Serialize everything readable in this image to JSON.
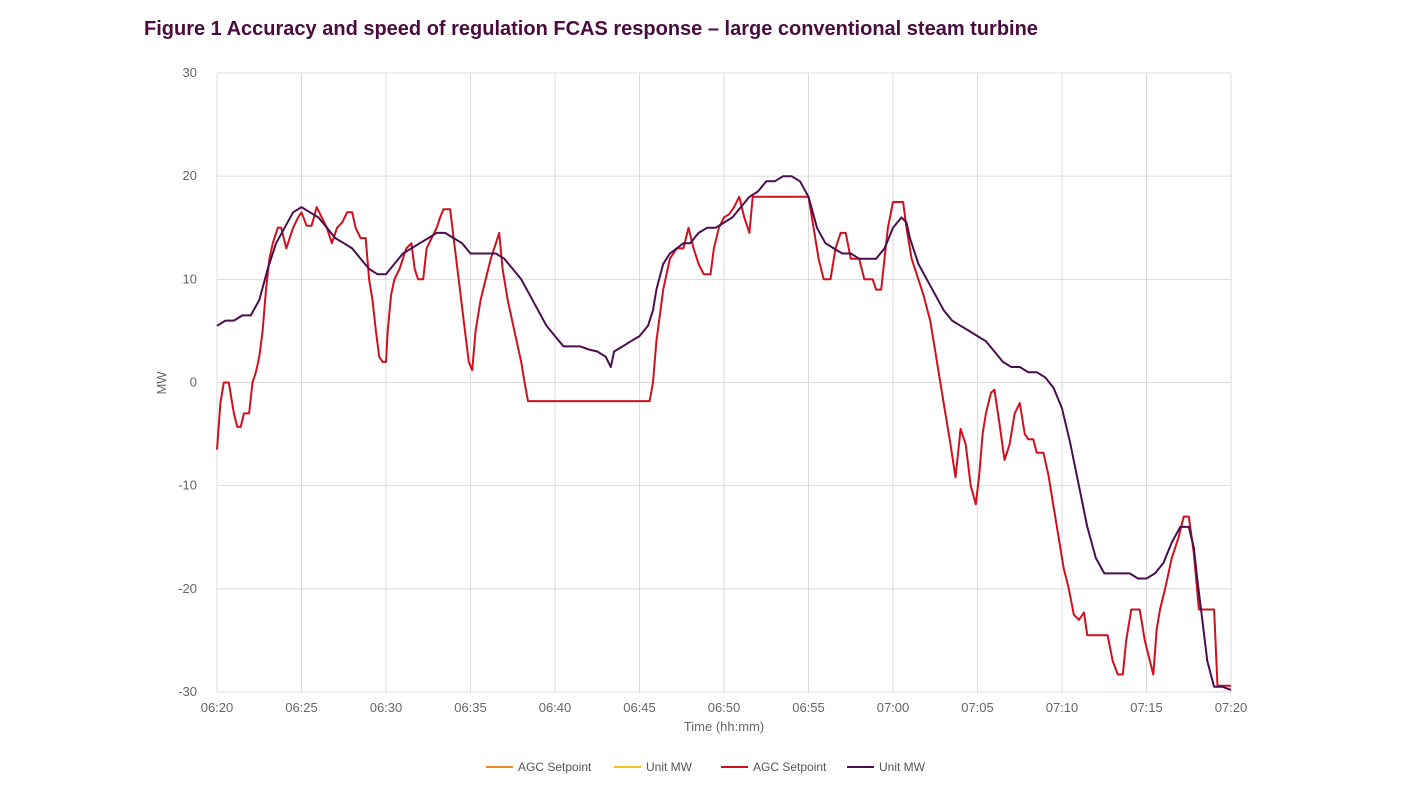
{
  "figure": {
    "title": "Figure 1  Accuracy and speed of regulation FCAS response – large conventional steam turbine"
  },
  "chart_data": {
    "type": "line",
    "title": "Figure 1  Accuracy and speed of regulation FCAS response – large conventional steam turbine",
    "xlabel": "Time (hh:mm)",
    "ylabel": "MW",
    "x_ticks": [
      {
        "t": 0,
        "label": "06:20"
      },
      {
        "t": 5,
        "label": "06:25"
      },
      {
        "t": 10,
        "label": "06:30"
      },
      {
        "t": 15,
        "label": "06:35"
      },
      {
        "t": 20,
        "label": "06:40"
      },
      {
        "t": 25,
        "label": "06:45"
      },
      {
        "t": 30,
        "label": "06:50"
      },
      {
        "t": 35,
        "label": "06:55"
      },
      {
        "t": 40,
        "label": "07:00"
      },
      {
        "t": 45,
        "label": "07:05"
      },
      {
        "t": 50,
        "label": "07:10"
      },
      {
        "t": 55,
        "label": "07:15"
      },
      {
        "t": 60,
        "label": "07:20"
      }
    ],
    "y_ticks": [
      {
        "v": 30,
        "label": "30"
      },
      {
        "v": 20,
        "label": "20"
      },
      {
        "v": 10,
        "label": "10"
      },
      {
        "v": 0,
        "label": "0"
      },
      {
        "v": -10,
        "label": "-10"
      },
      {
        "v": -20,
        "label": "-20"
      },
      {
        "v": -30,
        "label": "-30"
      }
    ],
    "xlim": [
      0,
      60
    ],
    "ylim": [
      -30,
      30
    ],
    "grid": true,
    "legend_position": "bottom",
    "legend": [
      {
        "name": "AGC Setpoint",
        "color": "#f08a24"
      },
      {
        "name": "Unit MW",
        "color": "#f2c21c"
      },
      {
        "name": "AGC Setpoint",
        "color": "#d0101f"
      },
      {
        "name": "Unit MW",
        "color": "#4a0e4e"
      }
    ],
    "series": [
      {
        "name": "AGC Setpoint",
        "color": "#d0101f",
        "points": [
          [
            0,
            -6.5
          ],
          [
            0.2,
            -2
          ],
          [
            0.4,
            0
          ],
          [
            0.7,
            0
          ],
          [
            1.0,
            -3
          ],
          [
            1.2,
            -4.3
          ],
          [
            1.4,
            -4.3
          ],
          [
            1.6,
            -3
          ],
          [
            1.9,
            -3
          ],
          [
            2.1,
            0
          ],
          [
            2.3,
            1
          ],
          [
            2.5,
            2.5
          ],
          [
            2.7,
            5
          ],
          [
            2.9,
            9
          ],
          [
            3.1,
            12
          ],
          [
            3.3,
            13.5
          ],
          [
            3.6,
            15
          ],
          [
            3.8,
            15
          ],
          [
            4.1,
            13
          ],
          [
            4.5,
            15
          ],
          [
            4.8,
            16
          ],
          [
            5.0,
            16.5
          ],
          [
            5.3,
            15.2
          ],
          [
            5.6,
            15.2
          ],
          [
            5.9,
            17
          ],
          [
            6.2,
            16
          ],
          [
            6.5,
            15
          ],
          [
            6.8,
            13.5
          ],
          [
            7.1,
            15
          ],
          [
            7.4,
            15.5
          ],
          [
            7.7,
            16.5
          ],
          [
            8.0,
            16.5
          ],
          [
            8.2,
            15
          ],
          [
            8.5,
            14
          ],
          [
            8.8,
            14
          ],
          [
            9.0,
            10
          ],
          [
            9.2,
            8
          ],
          [
            9.4,
            5
          ],
          [
            9.6,
            2.5
          ],
          [
            9.8,
            2
          ],
          [
            10.0,
            2
          ],
          [
            10.1,
            5
          ],
          [
            10.3,
            8.5
          ],
          [
            10.5,
            10
          ],
          [
            10.8,
            11
          ],
          [
            11.2,
            13
          ],
          [
            11.5,
            13.5
          ],
          [
            11.7,
            11
          ],
          [
            11.9,
            10
          ],
          [
            12.2,
            10
          ],
          [
            12.4,
            13
          ],
          [
            12.7,
            14
          ],
          [
            13.0,
            15
          ],
          [
            13.2,
            16
          ],
          [
            13.4,
            16.8
          ],
          [
            13.8,
            16.8
          ],
          [
            14.0,
            14
          ],
          [
            14.3,
            10
          ],
          [
            14.6,
            6
          ],
          [
            14.9,
            2
          ],
          [
            15.1,
            1.2
          ],
          [
            15.3,
            5
          ],
          [
            15.6,
            8
          ],
          [
            15.9,
            10
          ],
          [
            16.2,
            12
          ],
          [
            16.5,
            13.5
          ],
          [
            16.7,
            14.5
          ],
          [
            16.9,
            11
          ],
          [
            17.2,
            8
          ],
          [
            17.6,
            5
          ],
          [
            18.0,
            2
          ],
          [
            18.2,
            0
          ],
          [
            18.4,
            -1.8
          ],
          [
            25.6,
            -1.8
          ],
          [
            25.8,
            0
          ],
          [
            26.0,
            4
          ],
          [
            26.4,
            9
          ],
          [
            26.8,
            12
          ],
          [
            27.2,
            13
          ],
          [
            27.6,
            13
          ],
          [
            27.9,
            15
          ],
          [
            28.2,
            13
          ],
          [
            28.5,
            11.5
          ],
          [
            28.8,
            10.5
          ],
          [
            29.2,
            10.5
          ],
          [
            29.4,
            13
          ],
          [
            29.7,
            15
          ],
          [
            30.0,
            16
          ],
          [
            30.3,
            16.3
          ],
          [
            30.6,
            17
          ],
          [
            30.9,
            18
          ],
          [
            31.2,
            16
          ],
          [
            31.5,
            14.5
          ],
          [
            31.7,
            18
          ],
          [
            35.0,
            18
          ],
          [
            35.3,
            15
          ],
          [
            35.6,
            12
          ],
          [
            35.9,
            10
          ],
          [
            36.3,
            10
          ],
          [
            36.6,
            13
          ],
          [
            36.9,
            14.5
          ],
          [
            37.2,
            14.5
          ],
          [
            37.5,
            12
          ],
          [
            38.0,
            12
          ],
          [
            38.3,
            10
          ],
          [
            38.6,
            10
          ],
          [
            38.8,
            10
          ],
          [
            39.0,
            9
          ],
          [
            39.3,
            9
          ],
          [
            39.5,
            12
          ],
          [
            39.7,
            15
          ],
          [
            40.0,
            17.5
          ],
          [
            40.6,
            17.5
          ],
          [
            40.8,
            15
          ],
          [
            41.1,
            12
          ],
          [
            41.4,
            10.5
          ],
          [
            41.8,
            8.5
          ],
          [
            42.2,
            6
          ],
          [
            42.5,
            3
          ],
          [
            42.8,
            0
          ],
          [
            43.1,
            -3
          ],
          [
            43.4,
            -6
          ],
          [
            43.7,
            -9.2
          ],
          [
            44.0,
            -4.5
          ],
          [
            44.3,
            -6
          ],
          [
            44.6,
            -10
          ],
          [
            44.9,
            -11.8
          ],
          [
            45.1,
            -9
          ],
          [
            45.3,
            -5
          ],
          [
            45.5,
            -3
          ],
          [
            45.8,
            -1
          ],
          [
            46.0,
            -0.7
          ],
          [
            46.3,
            -4
          ],
          [
            46.6,
            -7.5
          ],
          [
            46.9,
            -6
          ],
          [
            47.2,
            -3
          ],
          [
            47.5,
            -2
          ],
          [
            47.8,
            -5
          ],
          [
            48.0,
            -5.5
          ],
          [
            48.3,
            -5.5
          ],
          [
            48.5,
            -6.8
          ],
          [
            48.9,
            -6.8
          ],
          [
            49.2,
            -9
          ],
          [
            49.5,
            -12
          ],
          [
            49.8,
            -15
          ],
          [
            50.1,
            -18
          ],
          [
            50.4,
            -20
          ],
          [
            50.7,
            -22.5
          ],
          [
            51.0,
            -23
          ],
          [
            51.3,
            -22.3
          ],
          [
            51.5,
            -24.5
          ],
          [
            52.7,
            -24.5
          ],
          [
            53.0,
            -27
          ],
          [
            53.3,
            -28.3
          ],
          [
            53.6,
            -28.3
          ],
          [
            53.8,
            -25
          ],
          [
            54.1,
            -22
          ],
          [
            54.6,
            -22
          ],
          [
            54.9,
            -25
          ],
          [
            55.2,
            -27
          ],
          [
            55.4,
            -28.3
          ],
          [
            55.6,
            -24
          ],
          [
            55.8,
            -22
          ],
          [
            56.1,
            -20
          ],
          [
            56.5,
            -17
          ],
          [
            56.9,
            -15
          ],
          [
            57.2,
            -13
          ],
          [
            57.5,
            -13
          ],
          [
            57.8,
            -16.5
          ],
          [
            58.1,
            -22
          ],
          [
            59.0,
            -22
          ],
          [
            59.2,
            -29.4
          ],
          [
            60,
            -29.4
          ]
        ]
      },
      {
        "name": "Unit MW",
        "color": "#4a0e4e",
        "points": [
          [
            0,
            5.5
          ],
          [
            0.5,
            6
          ],
          [
            1.0,
            6
          ],
          [
            1.5,
            6.5
          ],
          [
            2.0,
            6.5
          ],
          [
            2.5,
            8
          ],
          [
            3.0,
            11
          ],
          [
            3.5,
            13.5
          ],
          [
            4.0,
            15
          ],
          [
            4.5,
            16.5
          ],
          [
            5.0,
            17
          ],
          [
            5.5,
            16.5
          ],
          [
            6.0,
            16
          ],
          [
            6.5,
            15
          ],
          [
            7.0,
            14
          ],
          [
            7.5,
            13.5
          ],
          [
            8.0,
            13
          ],
          [
            8.5,
            12
          ],
          [
            9.0,
            11
          ],
          [
            9.5,
            10.5
          ],
          [
            10.0,
            10.5
          ],
          [
            10.5,
            11.5
          ],
          [
            11.0,
            12.5
          ],
          [
            11.5,
            13
          ],
          [
            12.0,
            13.5
          ],
          [
            12.5,
            14
          ],
          [
            13.0,
            14.5
          ],
          [
            13.5,
            14.5
          ],
          [
            14.0,
            14
          ],
          [
            14.5,
            13.5
          ],
          [
            15.0,
            12.5
          ],
          [
            15.5,
            12.5
          ],
          [
            16.0,
            12.5
          ],
          [
            16.5,
            12.5
          ],
          [
            17.0,
            12
          ],
          [
            17.5,
            11
          ],
          [
            18.0,
            10
          ],
          [
            18.5,
            8.5
          ],
          [
            19.0,
            7
          ],
          [
            19.5,
            5.5
          ],
          [
            20.0,
            4.5
          ],
          [
            20.5,
            3.5
          ],
          [
            21.0,
            3.5
          ],
          [
            21.5,
            3.5
          ],
          [
            22.0,
            3.2
          ],
          [
            22.5,
            3
          ],
          [
            23.0,
            2.5
          ],
          [
            23.3,
            1.5
          ],
          [
            23.5,
            3
          ],
          [
            24.0,
            3.5
          ],
          [
            24.5,
            4
          ],
          [
            25.0,
            4.5
          ],
          [
            25.5,
            5.5
          ],
          [
            25.8,
            7
          ],
          [
            26.0,
            9
          ],
          [
            26.4,
            11.5
          ],
          [
            26.8,
            12.5
          ],
          [
            27.2,
            13
          ],
          [
            27.6,
            13.5
          ],
          [
            28.0,
            13.5
          ],
          [
            28.5,
            14.5
          ],
          [
            29.0,
            15
          ],
          [
            29.5,
            15
          ],
          [
            30.0,
            15.5
          ],
          [
            30.5,
            16
          ],
          [
            31.0,
            17
          ],
          [
            31.5,
            18
          ],
          [
            32.0,
            18.5
          ],
          [
            32.5,
            19.5
          ],
          [
            33.0,
            19.5
          ],
          [
            33.5,
            20
          ],
          [
            34.0,
            20
          ],
          [
            34.5,
            19.5
          ],
          [
            35.0,
            18
          ],
          [
            35.5,
            15
          ],
          [
            36.0,
            13.5
          ],
          [
            36.5,
            13
          ],
          [
            37.0,
            12.5
          ],
          [
            37.5,
            12.5
          ],
          [
            38.0,
            12
          ],
          [
            38.5,
            12
          ],
          [
            39.0,
            12
          ],
          [
            39.5,
            13
          ],
          [
            40.0,
            15
          ],
          [
            40.5,
            16
          ],
          [
            40.8,
            15.5
          ],
          [
            41.0,
            14
          ],
          [
            41.5,
            11.5
          ],
          [
            42.0,
            10
          ],
          [
            42.5,
            8.5
          ],
          [
            43.0,
            7
          ],
          [
            43.5,
            6
          ],
          [
            44.0,
            5.5
          ],
          [
            44.5,
            5
          ],
          [
            45.0,
            4.5
          ],
          [
            45.5,
            4
          ],
          [
            46.0,
            3
          ],
          [
            46.5,
            2
          ],
          [
            47.0,
            1.5
          ],
          [
            47.5,
            1.5
          ],
          [
            48.0,
            1
          ],
          [
            48.5,
            1
          ],
          [
            49.0,
            0.5
          ],
          [
            49.5,
            -0.5
          ],
          [
            50.0,
            -2.5
          ],
          [
            50.5,
            -6
          ],
          [
            51.0,
            -10
          ],
          [
            51.5,
            -14
          ],
          [
            52.0,
            -17
          ],
          [
            52.5,
            -18.5
          ],
          [
            53.0,
            -18.5
          ],
          [
            53.5,
            -18.5
          ],
          [
            54.0,
            -18.5
          ],
          [
            54.5,
            -19
          ],
          [
            55.0,
            -19
          ],
          [
            55.5,
            -18.5
          ],
          [
            56.0,
            -17.5
          ],
          [
            56.5,
            -15.5
          ],
          [
            57.0,
            -14
          ],
          [
            57.5,
            -14
          ],
          [
            57.8,
            -16
          ],
          [
            58.0,
            -19
          ],
          [
            58.3,
            -23
          ],
          [
            58.6,
            -27
          ],
          [
            59.0,
            -29.5
          ],
          [
            59.5,
            -29.5
          ],
          [
            60,
            -29.8
          ]
        ]
      }
    ]
  }
}
